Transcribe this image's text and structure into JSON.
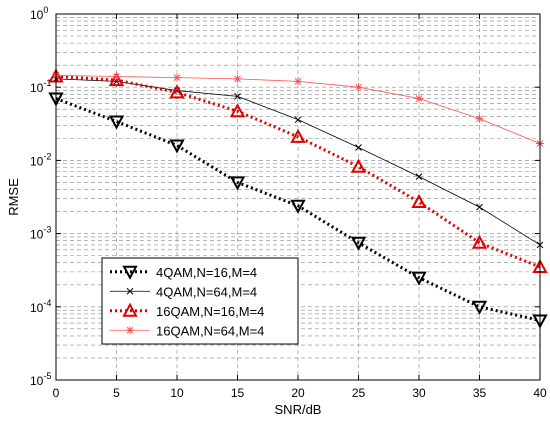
{
  "chart_data": {
    "type": "line",
    "xlabel": "SNR/dB",
    "ylabel": "RMSE",
    "x": [
      0,
      5,
      10,
      15,
      20,
      25,
      30,
      35,
      40
    ],
    "xlim": [
      0,
      40
    ],
    "ylim": [
      1e-05,
      1
    ],
    "y_scale": "log",
    "x_ticks": [
      "0",
      "5",
      "10",
      "15",
      "20",
      "25",
      "30",
      "35",
      "40"
    ],
    "y_ticks": [
      {
        "base": "10",
        "exp": "0",
        "value": 1
      },
      {
        "base": "10",
        "exp": "-1",
        "value": 0.1
      },
      {
        "base": "10",
        "exp": "-2",
        "value": 0.01
      },
      {
        "base": "10",
        "exp": "-3",
        "value": 0.001
      },
      {
        "base": "10",
        "exp": "-4",
        "value": 0.0001
      },
      {
        "base": "10",
        "exp": "-5",
        "value": 1e-05
      }
    ],
    "grid": true,
    "legend_position": "lower-left",
    "series": [
      {
        "name": "4QAM,N=16,M=4",
        "color": "#000000",
        "marker": "triangle-down",
        "line": "dotted-thick",
        "values": [
          0.07,
          0.034,
          0.016,
          0.005,
          0.0024,
          0.00075,
          0.00025,
          0.0001,
          6.5e-05
        ]
      },
      {
        "name": "4QAM,N=64,M=4",
        "color": "#000000",
        "marker": "x",
        "line": "solid-thin",
        "values": [
          0.13,
          0.12,
          0.09,
          0.075,
          0.036,
          0.015,
          0.006,
          0.0023,
          0.0007
        ]
      },
      {
        "name": "16QAM,N=16,M=4",
        "color": "#e00000",
        "marker": "triangle-up",
        "line": "dotted-thick",
        "values": [
          0.14,
          0.125,
          0.085,
          0.047,
          0.021,
          0.0082,
          0.0027,
          0.00075,
          0.00035
        ]
      },
      {
        "name": "16QAM,N=64,M=4",
        "color": "#ff5050",
        "marker": "star",
        "line": "solid-thin",
        "values": [
          0.145,
          0.14,
          0.135,
          0.13,
          0.12,
          0.1,
          0.07,
          0.037,
          0.017
        ]
      }
    ]
  }
}
